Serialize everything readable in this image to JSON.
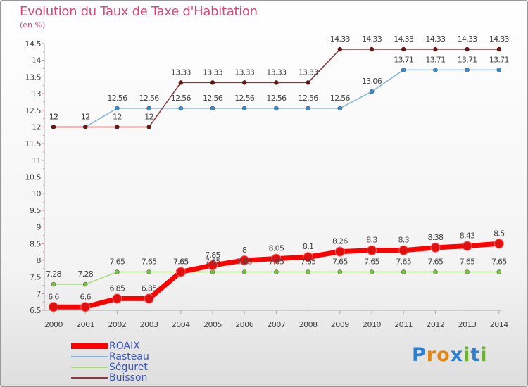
{
  "header": {
    "title": "Evolution du Taux de Taxe d'Habitation",
    "unit": "(en %)"
  },
  "logo": {
    "text": "Proxiti",
    "colors": [
      "#2f7fd1",
      "#e0871a",
      "#e0871a",
      "#2f7fd1",
      "#6bb52e",
      "#2f7fd1",
      "#6bb52e"
    ]
  },
  "chart_data": {
    "type": "line",
    "title": "Evolution du Taux de Taxe d'Habitation",
    "ylabel": "(en %)",
    "xlabel": "",
    "x": [
      "2000",
      "2001",
      "2002",
      "2003",
      "2004",
      "2005",
      "2006",
      "2007",
      "2008",
      "2009",
      "2010",
      "2011",
      "2012",
      "2013",
      "2014"
    ],
    "ylim": [
      6.5,
      14.5
    ],
    "yticks": [
      "6.5",
      "7",
      "7.5",
      "8",
      "8.5",
      "9",
      "9.5",
      "10",
      "10.5",
      "11",
      "11.5",
      "12",
      "12.5",
      "13",
      "13.5",
      "14",
      "14.5"
    ],
    "grid": false,
    "legend_position": "bottom-left",
    "series": [
      {
        "name": "ROAIX",
        "color": "#ff0000",
        "marker_color": "#e01010",
        "emphasis": true,
        "values": [
          6.6,
          6.6,
          6.85,
          6.85,
          7.65,
          7.85,
          8,
          8.05,
          8.1,
          8.26,
          8.3,
          8.3,
          8.38,
          8.43,
          8.5
        ],
        "labels": [
          "6.6",
          "6.6",
          "6.85",
          "6.85",
          "7.65",
          "7.85",
          "8",
          "8.05",
          "8.1",
          "8.26",
          "8.3",
          "8.3",
          "8.38",
          "8.43",
          "8.5"
        ]
      },
      {
        "name": "Rasteau",
        "color": "#7fb2dd",
        "marker_color": "#3b8fd0",
        "values": [
          12,
          12,
          12.56,
          12.56,
          12.56,
          12.56,
          12.56,
          12.56,
          12.56,
          12.56,
          13.06,
          13.71,
          13.71,
          13.71,
          13.71
        ],
        "labels": [
          "12",
          "12",
          "12.56",
          "12.56",
          "12.56",
          "12.56",
          "12.56",
          "12.56",
          "12.56",
          "12.56",
          "13.06",
          "13.71",
          "13.71",
          "13.71",
          "13.71"
        ]
      },
      {
        "name": "Séguret",
        "color": "#a8dc7a",
        "marker_color": "#7cc243",
        "values": [
          7.28,
          7.28,
          7.65,
          7.65,
          7.65,
          7.65,
          7.65,
          7.65,
          7.65,
          7.65,
          7.65,
          7.65,
          7.65,
          7.65,
          7.65
        ],
        "labels": [
          "7.28",
          "7.28",
          "7.65",
          "7.65",
          "7.65",
          "7.65",
          "7.65",
          "7.65",
          "7.65",
          "7.65",
          "7.65",
          "7.65",
          "7.65",
          "7.65",
          "7.65"
        ]
      },
      {
        "name": "Buisson",
        "color": "#8a3a3a",
        "marker_color": "#6b1414",
        "values": [
          12,
          12,
          12,
          12,
          13.33,
          13.33,
          13.33,
          13.33,
          13.33,
          14.33,
          14.33,
          14.33,
          14.33,
          14.33,
          14.33
        ],
        "labels": [
          "12",
          "12",
          "12",
          "12",
          "13.33",
          "13.33",
          "13.33",
          "13.33",
          "13.33",
          "14.33",
          "14.33",
          "14.33",
          "14.33",
          "14.33",
          "14.33"
        ]
      }
    ]
  }
}
